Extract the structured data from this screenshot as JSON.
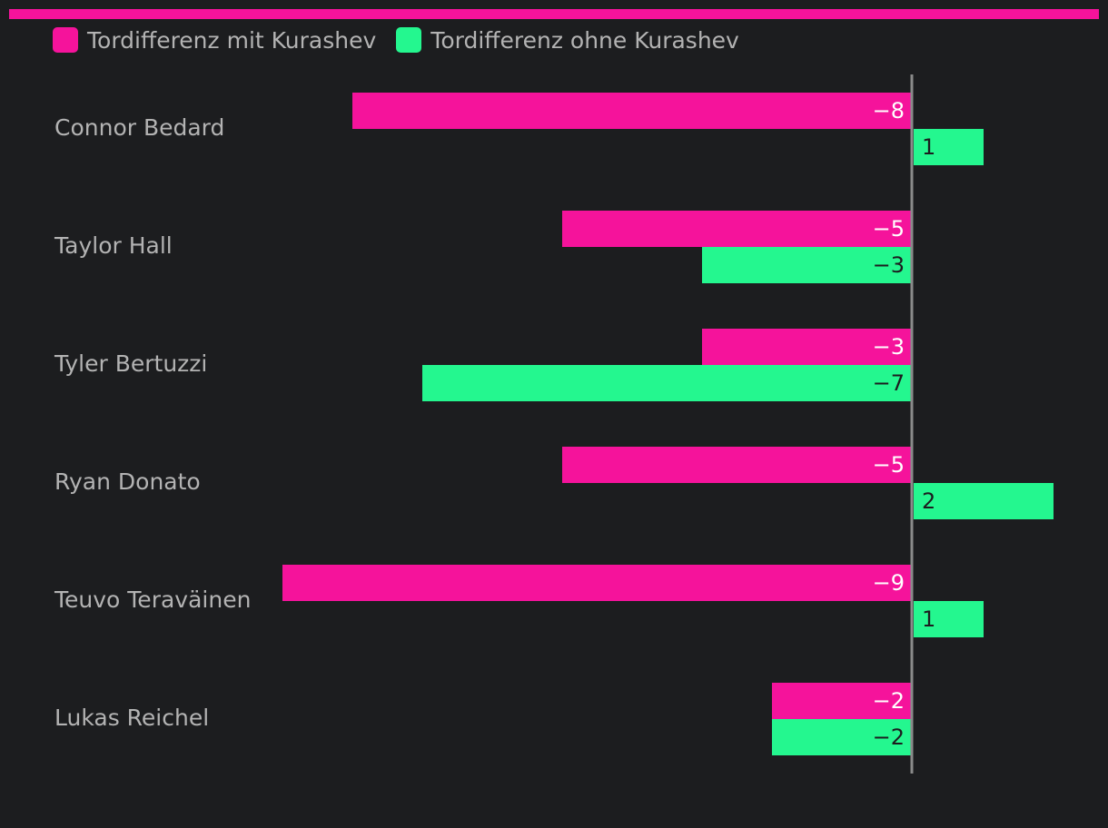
{
  "chart_data": {
    "type": "bar",
    "orientation": "horizontal",
    "categories": [
      "Connor Bedard",
      "Taylor Hall",
      "Tyler Bertuzzi",
      "Ryan Donato",
      "Teuvo Teraväinen",
      "Lukas Reichel"
    ],
    "series": [
      {
        "name": "Tordifferenz mit Kurashev",
        "color": "#f5139b",
        "values": [
          -8,
          -5,
          -3,
          -5,
          -9,
          -2
        ],
        "labels": [
          "−8",
          "−5",
          "−3",
          "−5",
          "−9",
          "−2"
        ]
      },
      {
        "name": "Tordifferenz ohne Kurashev",
        "color": "#24f78f",
        "values": [
          1,
          -3,
          -7,
          2,
          1,
          -2
        ],
        "labels": [
          "1",
          "−3",
          "−7",
          "2",
          "1",
          "−2"
        ]
      }
    ],
    "xlim": [
      -9,
      2
    ],
    "title": "",
    "xlabel": "",
    "ylabel": "",
    "grid": false,
    "legend_position": "top-left"
  }
}
